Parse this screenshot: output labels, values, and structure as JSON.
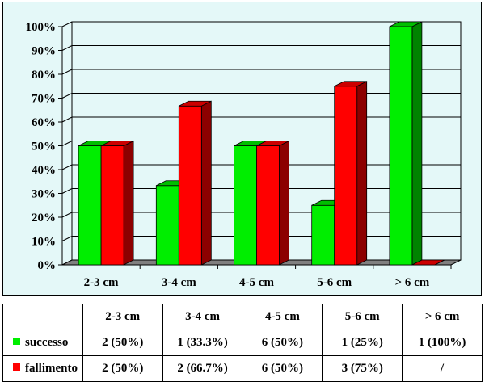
{
  "chart_data": {
    "type": "bar",
    "categories": [
      "2-3 cm",
      "3-4 cm",
      "4-5 cm",
      "5-6 cm",
      "> 6 cm"
    ],
    "series": [
      {
        "name": "successo",
        "values": [
          50,
          33.3,
          50,
          25,
          100
        ],
        "color": "#00ee00"
      },
      {
        "name": "fallimento",
        "values": [
          50,
          66.7,
          50,
          75,
          0
        ],
        "color": "#ff0000"
      }
    ],
    "yticks": [
      "0%",
      "10%",
      "20%",
      "30%",
      "40%",
      "50%",
      "60%",
      "70%",
      "80%",
      "90%",
      "100%"
    ],
    "ylim": [
      0,
      100
    ],
    "grid": true,
    "legend": "table-below",
    "title": "",
    "xlabel": "",
    "ylabel": ""
  },
  "table": {
    "headers": [
      "",
      "2-3 cm",
      "3-4 cm",
      "4-5 cm",
      "5-6 cm",
      "> 6 cm"
    ],
    "rows": [
      {
        "label": "successo",
        "color": "#00ee00",
        "cells": [
          "2 (50%)",
          "1 (33.3%)",
          "6 (50%)",
          "1 (25%)",
          "1 (100%)"
        ]
      },
      {
        "label": "fallimento",
        "color": "#ff0000",
        "cells": [
          "2 (50%)",
          "2 (66.7%)",
          "6 (50%)",
          "3 (75%)",
          "/"
        ]
      }
    ]
  }
}
